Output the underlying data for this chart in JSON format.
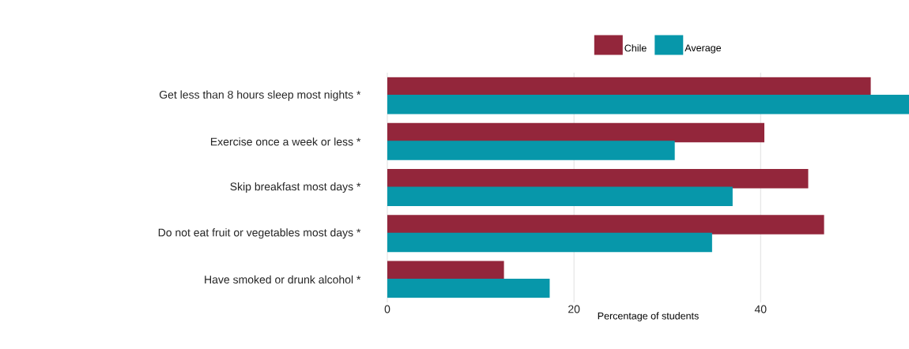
{
  "chart_data": {
    "type": "bar",
    "orientation": "horizontal",
    "xlabel": "Percentage of students",
    "categories": [
      "Get less than 8 hours sleep most nights *",
      "Exercise once a week or less *",
      "Skip breakfast most days *",
      "Do not eat fruit or vegetables most days *",
      "Have smoked or drunk alcohol *"
    ],
    "series": [
      {
        "name": "Chile",
        "color": "#93263b",
        "values": [
          51.8,
          40.4,
          45.1,
          46.8,
          12.5
        ]
      },
      {
        "name": "Average",
        "color": "#0797aa",
        "values": [
          55.9,
          30.8,
          37.0,
          34.8,
          17.4
        ]
      }
    ],
    "xlim": [
      0,
      55.9
    ],
    "xticks": [
      0,
      20,
      40
    ],
    "grid": "x",
    "legend": "top"
  }
}
